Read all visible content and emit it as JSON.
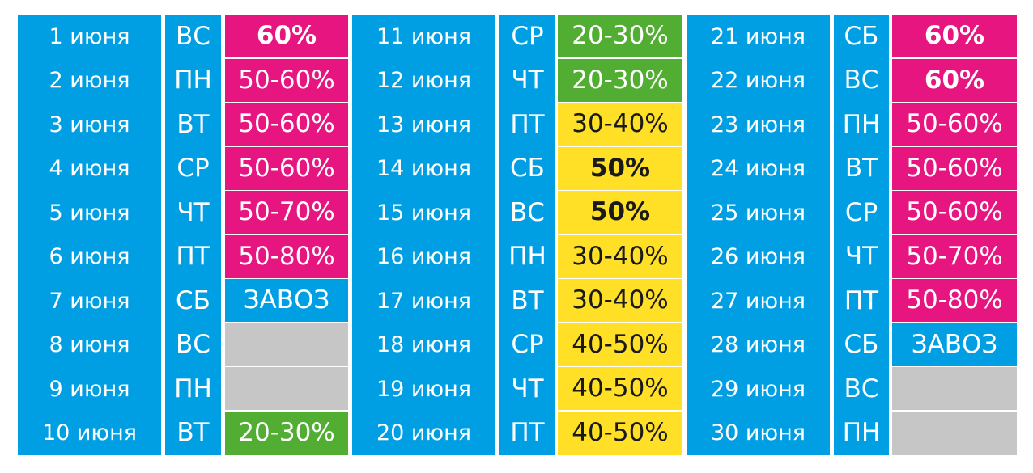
{
  "colors": {
    "blue": "#009fe3",
    "magenta": "#e6157f",
    "green": "#52ae32",
    "yellow": "#ffe027",
    "gray": "#c6c6c6",
    "white_text": "#ffffff",
    "dark_text": "#1a1a1a"
  },
  "columns": [
    {
      "rows": [
        {
          "date": "1 июня",
          "day": "ВС",
          "discount": "60%",
          "style": "magenta",
          "bold": true
        },
        {
          "date": "2 июня",
          "day": "ПН",
          "discount": "50-60%",
          "style": "magenta",
          "bold": false
        },
        {
          "date": "3 июня",
          "day": "ВТ",
          "discount": "50-60%",
          "style": "magenta",
          "bold": false
        },
        {
          "date": "4 июня",
          "day": "СР",
          "discount": "50-60%",
          "style": "magenta",
          "bold": false
        },
        {
          "date": "5 июня",
          "day": "ЧТ",
          "discount": "50-70%",
          "style": "magenta",
          "bold": false
        },
        {
          "date": "6 июня",
          "day": "ПТ",
          "discount": "50-80%",
          "style": "magenta",
          "bold": false
        },
        {
          "date": "7 июня",
          "day": "СБ",
          "discount": "ЗАВОЗ",
          "style": "blue",
          "bold": false
        },
        {
          "date": "8 июня",
          "day": "ВС",
          "discount": "",
          "style": "gray",
          "bold": false
        },
        {
          "date": "9 июня",
          "day": "ПН",
          "discount": "",
          "style": "gray",
          "bold": false
        },
        {
          "date": "10 июня",
          "day": "ВТ",
          "discount": "20-30%",
          "style": "green",
          "bold": false
        }
      ]
    },
    {
      "rows": [
        {
          "date": "11 июня",
          "day": "СР",
          "discount": "20-30%",
          "style": "green",
          "bold": false
        },
        {
          "date": "12 июня",
          "day": "ЧТ",
          "discount": "20-30%",
          "style": "green",
          "bold": false
        },
        {
          "date": "13 июня",
          "day": "ПТ",
          "discount": "30-40%",
          "style": "yellow",
          "bold": false
        },
        {
          "date": "14 июня",
          "day": "СБ",
          "discount": "50%",
          "style": "yellow",
          "bold": true
        },
        {
          "date": "15 июня",
          "day": "ВС",
          "discount": "50%",
          "style": "yellow",
          "bold": true
        },
        {
          "date": "16 июня",
          "day": "ПН",
          "discount": "30-40%",
          "style": "yellow",
          "bold": false
        },
        {
          "date": "17 июня",
          "day": "ВТ",
          "discount": "30-40%",
          "style": "yellow",
          "bold": false
        },
        {
          "date": "18 июня",
          "day": "СР",
          "discount": "40-50%",
          "style": "yellow",
          "bold": false
        },
        {
          "date": "19 июня",
          "day": "ЧТ",
          "discount": "40-50%",
          "style": "yellow",
          "bold": false
        },
        {
          "date": "20 июня",
          "day": "ПТ",
          "discount": "40-50%",
          "style": "yellow",
          "bold": false
        }
      ]
    },
    {
      "rows": [
        {
          "date": "21 июня",
          "day": "СБ",
          "discount": "60%",
          "style": "magenta",
          "bold": true
        },
        {
          "date": "22 июня",
          "day": "ВС",
          "discount": "60%",
          "style": "magenta",
          "bold": true
        },
        {
          "date": "23 июня",
          "day": "ПН",
          "discount": "50-60%",
          "style": "magenta",
          "bold": false
        },
        {
          "date": "24 июня",
          "day": "ВТ",
          "discount": "50-60%",
          "style": "magenta",
          "bold": false
        },
        {
          "date": "25 июня",
          "day": "СР",
          "discount": "50-60%",
          "style": "magenta",
          "bold": false
        },
        {
          "date": "26 июня",
          "day": "ЧТ",
          "discount": "50-70%",
          "style": "magenta",
          "bold": false
        },
        {
          "date": "27 июня",
          "day": "ПТ",
          "discount": "50-80%",
          "style": "magenta",
          "bold": false
        },
        {
          "date": "28 июня",
          "day": "СБ",
          "discount": "ЗАВОЗ",
          "style": "blue",
          "bold": false
        },
        {
          "date": "29 июня",
          "day": "ВС",
          "discount": "",
          "style": "gray",
          "bold": false
        },
        {
          "date": "30 июня",
          "day": "ПН",
          "discount": "",
          "style": "gray",
          "bold": false
        }
      ]
    }
  ]
}
